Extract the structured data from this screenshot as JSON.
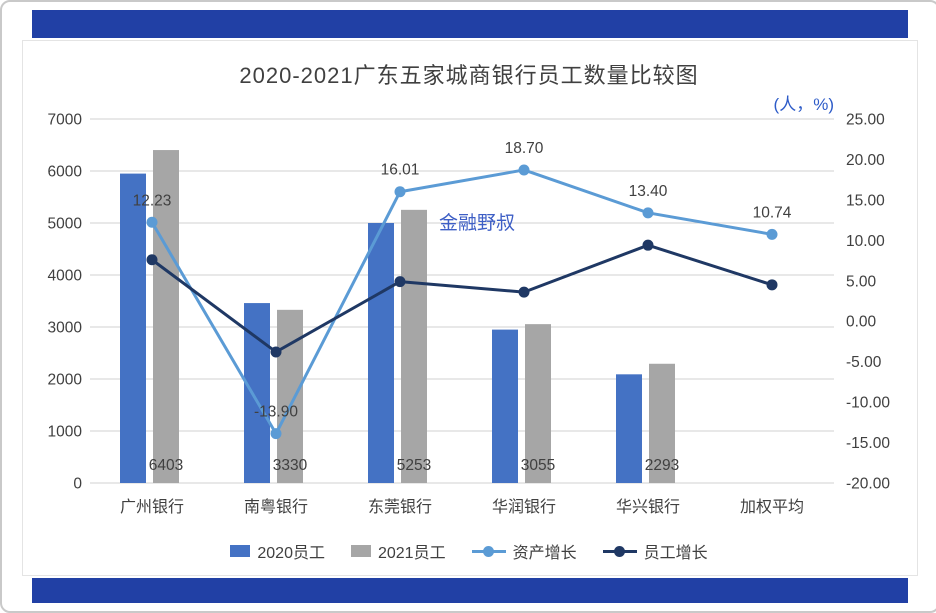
{
  "page": {
    "accent_color": "#2140a5"
  },
  "chart_data": {
    "type": "combo-bar-line",
    "title": "2020-2021广东五家城商银行员工数量比较图",
    "unit_label": "(人，%)",
    "watermark": "金融野叔",
    "categories": [
      "广州银行",
      "南粤银行",
      "东莞银行",
      "华润银行",
      "华兴银行",
      "加权平均"
    ],
    "bar_series": [
      {
        "name": "2020员工",
        "color": "#4472c4",
        "values": [
          5950,
          3460,
          5000,
          2950,
          2090,
          null
        ]
      },
      {
        "name": "2021员工",
        "color": "#a6a6a6",
        "values": [
          6403,
          3330,
          5253,
          3055,
          2293,
          null
        ],
        "labels": [
          "6403",
          "3330",
          "5253",
          "3055",
          "2293",
          ""
        ]
      }
    ],
    "line_series": [
      {
        "name": "资产增长",
        "color": "#5b9bd5",
        "values": [
          12.23,
          -13.9,
          16.01,
          18.7,
          13.4,
          10.74
        ],
        "labels": [
          "12.23",
          "-13.90",
          "16.01",
          "18.70",
          "13.40",
          "10.74"
        ]
      },
      {
        "name": "员工增长",
        "color": "#1f3864",
        "values": [
          7.6,
          -3.8,
          4.9,
          3.6,
          9.4,
          4.5
        ],
        "labels": []
      }
    ],
    "left_axis": {
      "min": 0,
      "max": 7000,
      "step": 1000,
      "tick_labels": [
        "0",
        "1000",
        "2000",
        "3000",
        "4000",
        "5000",
        "6000",
        "7000"
      ]
    },
    "right_axis": {
      "min": -20,
      "max": 25,
      "step": 5,
      "tick_labels": [
        "-20.00",
        "-15.00",
        "-10.00",
        "-5.00",
        "0.00",
        "5.00",
        "10.00",
        "15.00",
        "20.00",
        "25.00"
      ]
    },
    "legend": [
      {
        "label": "2020员工",
        "type": "square",
        "color": "#4472c4"
      },
      {
        "label": "2021员工",
        "type": "square",
        "color": "#a6a6a6"
      },
      {
        "label": "资产增长",
        "type": "line",
        "color": "#5b9bd5"
      },
      {
        "label": "员工增长",
        "type": "line",
        "color": "#1f3864"
      }
    ]
  }
}
